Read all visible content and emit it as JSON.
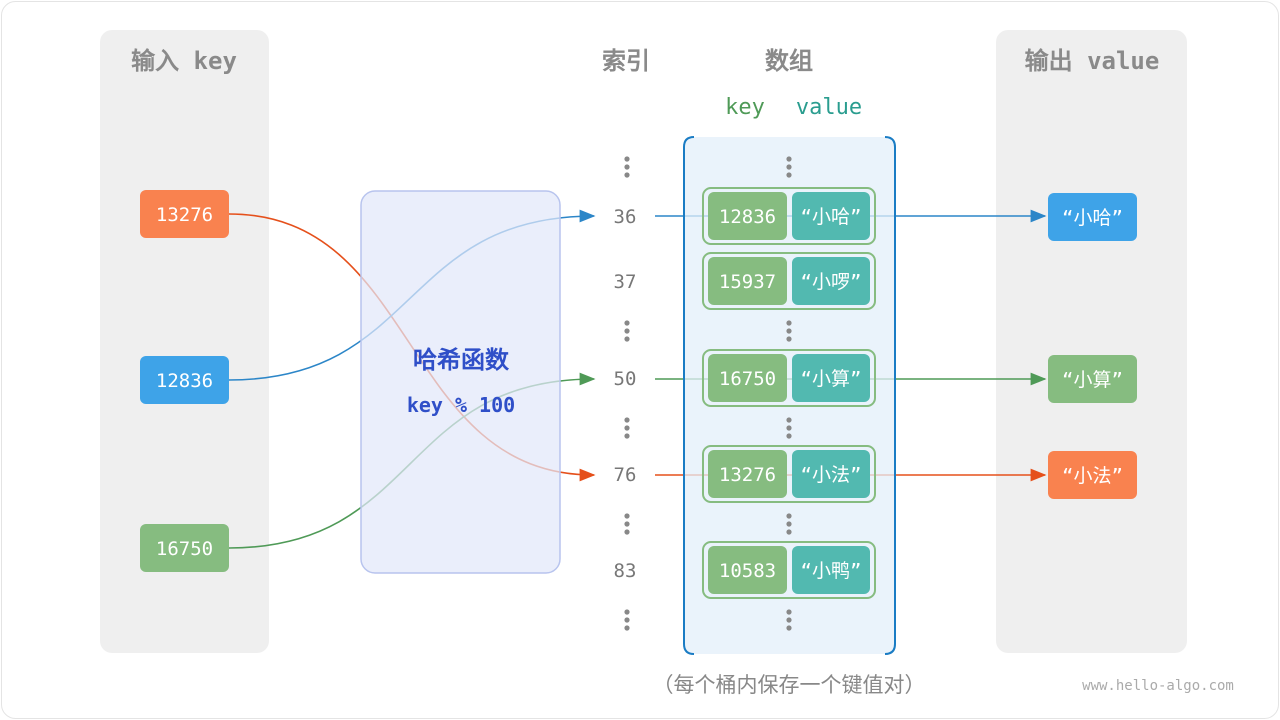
{
  "headers": {
    "input": "输入 key",
    "index": "索引",
    "array": "数组",
    "output": "输出 value",
    "col_key": "key",
    "col_value": "value"
  },
  "hash_function": {
    "title": "哈希函数",
    "formula": "key % 100"
  },
  "inputs": [
    {
      "key": "13276",
      "color": "#f9824f"
    },
    {
      "key": "12836",
      "color": "#3ea3e8"
    },
    {
      "key": "16750",
      "color": "#86bc80"
    }
  ],
  "buckets": [
    {
      "index": "36",
      "key": "12836",
      "value": "“小哈”"
    },
    {
      "index": "37",
      "key": "15937",
      "value": "“小啰”"
    },
    {
      "index": "50",
      "key": "16750",
      "value": "“小算”"
    },
    {
      "index": "76",
      "key": "13276",
      "value": "“小法”"
    },
    {
      "index": "83",
      "key": "10583",
      "value": "“小鸭”"
    }
  ],
  "outputs": [
    {
      "value": "“小哈”",
      "color": "#3ea3e8"
    },
    {
      "value": "“小算”",
      "color": "#86bc80"
    },
    {
      "value": "“小法”",
      "color": "#f9824f"
    }
  ],
  "caption": "（每个桶内保存一个键值对）",
  "watermark": "www.hello-algo.com",
  "colors": {
    "orange_line": "#e5501b",
    "blue_line": "#2c86c8",
    "green_line": "#4f9a57",
    "key_cell": "#86bc80",
    "value_cell": "#52b9b0"
  }
}
